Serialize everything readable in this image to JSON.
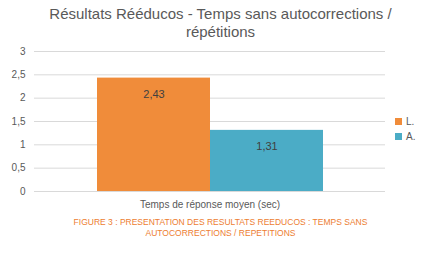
{
  "chart_data": {
    "type": "bar",
    "title": "Résultats Rééducos - Temps sans autocorrections / répétitions",
    "caption": "FIGURE 3 : PRESENTATION DES RESULTATS REEDUCOS : TEMPS SANS AUTOCORRECTIONS / REPETITIONS",
    "categories": [
      "Temps de réponse moyen (sec)"
    ],
    "series": [
      {
        "name": "L.",
        "color": "#F08C3A",
        "values": [
          2.43
        ],
        "value_labels": [
          "2,43"
        ]
      },
      {
        "name": "A.",
        "color": "#4BACC6",
        "values": [
          1.31
        ],
        "value_labels": [
          "1,31"
        ]
      }
    ],
    "ylim": [
      0,
      3
    ],
    "yticks": [
      0,
      {
        "value": 0.5,
        "label": "0,5"
      },
      1,
      {
        "value": 1.5,
        "label": "1,5"
      },
      2,
      {
        "value": 2.5,
        "label": "2,5"
      },
      3
    ],
    "grid": true,
    "legend": "right",
    "data_labels": true
  }
}
